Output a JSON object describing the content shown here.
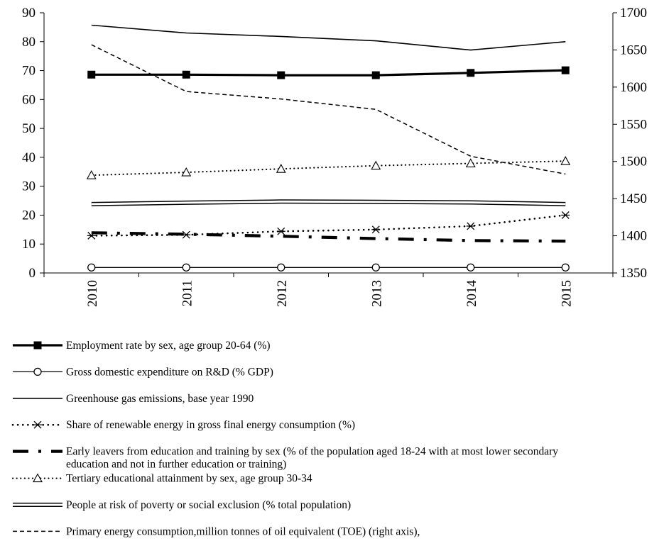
{
  "chart_data": {
    "type": "line",
    "title": "",
    "xlabel": "",
    "ylabel": "",
    "categories": [
      "2010",
      "2011",
      "2012",
      "2013",
      "2014",
      "2015"
    ],
    "y_left": {
      "min": 0,
      "max": 90,
      "step": 10
    },
    "y_right": {
      "min": 1350,
      "max": 1700,
      "step": 50
    },
    "grid": false,
    "legend_placement": "bottom",
    "series": [
      {
        "name": "Employment rate by sex, age group 20-64 (%)",
        "axis": "left",
        "style": "thick-square",
        "values": [
          68.6,
          68.6,
          68.4,
          68.4,
          69.2,
          70.1
        ]
      },
      {
        "name": "Gross domestic expenditure on R&D (% GDP)",
        "axis": "left",
        "style": "circle",
        "values": [
          1.9,
          1.9,
          1.9,
          1.9,
          1.9,
          1.9
        ]
      },
      {
        "name": "Greenhouse gas emissions, base year 1990",
        "axis": "left",
        "style": "solid",
        "values": [
          85.7,
          83.0,
          81.8,
          80.3,
          77.1,
          80.0
        ]
      },
      {
        "name": "Share of renewable energy in gross final energy consumption (%)",
        "axis": "left",
        "style": "dotted-star",
        "values": [
          12.9,
          13.2,
          14.4,
          15.0,
          16.2,
          20.0
        ]
      },
      {
        "name": "Early leavers from education and training by sex (% of the population aged 18-24 with at most lower secondary education and not in further education or training)",
        "axis": "left",
        "style": "dash-dot",
        "values": [
          13.9,
          13.4,
          12.7,
          11.9,
          11.2,
          11.0
        ]
      },
      {
        "name": "Tertiary educational attainment by sex, age group 30-34",
        "axis": "left",
        "style": "dotted-triangle",
        "values": [
          33.8,
          34.8,
          36.0,
          37.1,
          37.9,
          38.7
        ]
      },
      {
        "name": "People at risk of poverty or social exclusion (% total population)",
        "axis": "left",
        "style": "double",
        "values": [
          23.8,
          24.3,
          24.7,
          24.6,
          24.4,
          23.8
        ]
      },
      {
        "name": "Primary energy consumption,million tonnes of oil equivalent (TOE) (right axis),",
        "axis": "right",
        "style": "dashed",
        "values": [
          1657,
          1594,
          1584,
          1570,
          1507,
          1483
        ]
      }
    ],
    "legend_lines": [
      [
        "Employment rate by sex, age group 20-64 (%)"
      ],
      [
        "Gross domestic expenditure on R&D (% GDP)"
      ],
      [
        "Greenhouse gas emissions, base year 1990"
      ],
      [
        "Share of renewable energy in gross final energy consumption (%)"
      ],
      [
        "Early leavers from education and training by sex (%  of the population aged 18-24 with at most lower secondary",
        "education and not in further education or training)"
      ],
      [
        "Tertiary educational attainment by sex, age group 30-34"
      ],
      [
        "People at risk of poverty or social exclusion (% total population)"
      ],
      [
        "Primary energy consumption,million tonnes of oil equivalent (TOE) (right axis),"
      ]
    ]
  }
}
